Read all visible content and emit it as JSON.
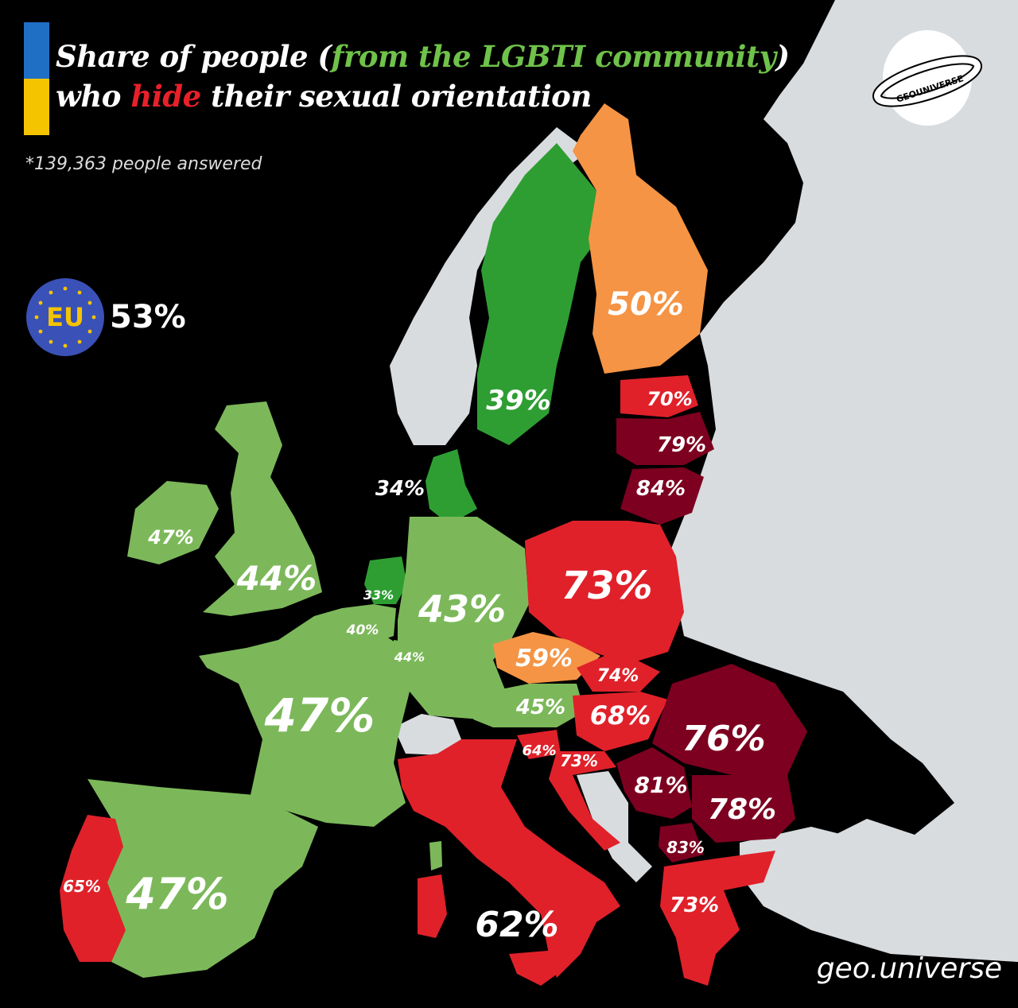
{
  "title": {
    "line1_pre": "Share of people (",
    "line1_green": "from the LGBTI community",
    "line1_post": ")",
    "line2_pre": "who ",
    "line2_red": "hide",
    "line2_post": " their sexual orientation"
  },
  "note": "*139,363 people answered",
  "eu": {
    "label": "EU",
    "value": "53%"
  },
  "logo": {
    "text": "GEOUNIVERSE"
  },
  "credit": "geo.universe",
  "colors": {
    "background": "#000000",
    "non_eu_land": "#d8dcdf",
    "light_green": "#7cb85a",
    "dark_green": "#2e9e33",
    "orange": "#f59445",
    "red": "#e0212a",
    "dark_red": "#7d0020",
    "flag_blue": "#1f6fc5",
    "flag_yellow": "#f5c400",
    "eu_blue": "#3a51b8"
  },
  "countries": [
    {
      "name": "Sweden",
      "value": "39%"
    },
    {
      "name": "Finland",
      "value": "50%"
    },
    {
      "name": "Estonia",
      "value": "70%"
    },
    {
      "name": "Latvia",
      "value": "79%"
    },
    {
      "name": "Lithuania",
      "value": "84%"
    },
    {
      "name": "Denmark",
      "value": "34%"
    },
    {
      "name": "Ireland",
      "value": "47%"
    },
    {
      "name": "United Kingdom",
      "value": "44%"
    },
    {
      "name": "Netherlands",
      "value": "33%"
    },
    {
      "name": "Belgium",
      "value": "40%"
    },
    {
      "name": "Luxembourg",
      "value": "44%"
    },
    {
      "name": "Germany",
      "value": "43%"
    },
    {
      "name": "Poland",
      "value": "73%"
    },
    {
      "name": "Czechia",
      "value": "59%"
    },
    {
      "name": "Slovakia",
      "value": "74%"
    },
    {
      "name": "Austria",
      "value": "45%"
    },
    {
      "name": "Hungary",
      "value": "68%"
    },
    {
      "name": "Slovenia",
      "value": "64%"
    },
    {
      "name": "Croatia",
      "value": "73%"
    },
    {
      "name": "Romania",
      "value": "76%"
    },
    {
      "name": "Serbia",
      "value": "81%"
    },
    {
      "name": "Bulgaria",
      "value": "78%"
    },
    {
      "name": "North Macedonia",
      "value": "83%"
    },
    {
      "name": "Greece",
      "value": "73%"
    },
    {
      "name": "France",
      "value": "47%"
    },
    {
      "name": "Spain",
      "value": "47%"
    },
    {
      "name": "Portugal",
      "value": "65%"
    },
    {
      "name": "Italy",
      "value": "62%"
    }
  ]
}
